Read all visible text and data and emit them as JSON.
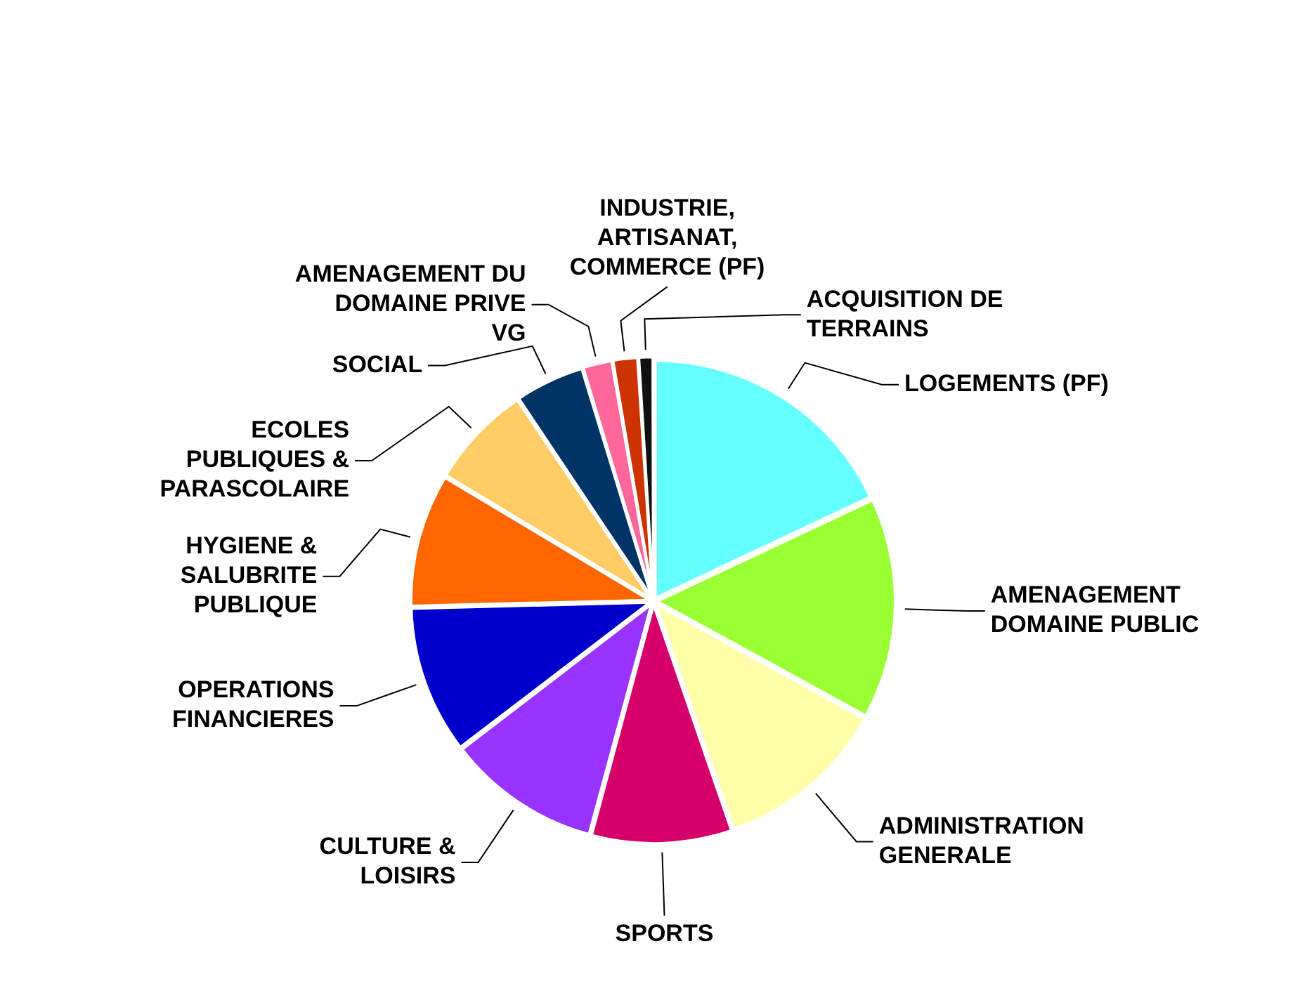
{
  "chart_data": {
    "type": "pie",
    "categories": [
      "LOGEMENTS (PF)",
      "AMENAGEMENT DOMAINE PUBLIC",
      "ADMINISTRATION GENERALE",
      "SPORTS",
      "CULTURE & LOISIRS",
      "OPERATIONS FINANCIERES",
      "HYGIENE & SALUBRITE PUBLIQUE",
      "ECOLES PUBLIQUES & PARASCOLAIRE",
      "SOCIAL",
      "AMENAGEMENT DU DOMAINE PRIVE VG",
      "INDUSTRIE, ARTISANAT, COMMERCE (PF)",
      "ACQUISITION DE TERRAINS"
    ],
    "values": [
      18,
      15,
      11.7,
      9.5,
      10.4,
      10,
      9,
      7,
      4.7,
      2,
      1.7,
      1
    ],
    "colors": [
      "#66ffff",
      "#99ff33",
      "#ffffaa",
      "#d6006b",
      "#9933ff",
      "#0000cc",
      "#ff6600",
      "#ffcc66",
      "#003366",
      "#ff6699",
      "#cc3300",
      "#111111"
    ],
    "legend": false
  }
}
